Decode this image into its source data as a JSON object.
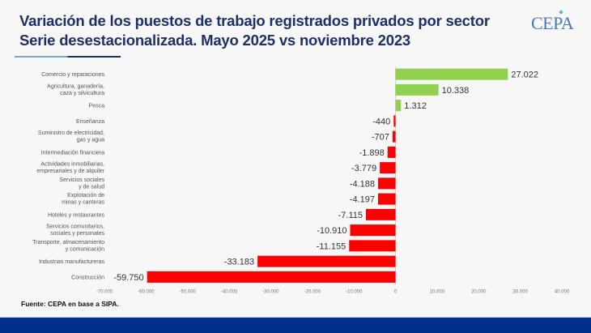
{
  "header": {
    "title_line1": "Variación de los puestos de trabajo registrados privados por sector",
    "title_line2": "Serie desestacionalizada. Mayo 2025 vs noviembre 2023",
    "logo_text": "CEPA"
  },
  "footer": {
    "source": "Fuente: CEPA en base a SIPA."
  },
  "colors": {
    "positive": "#92d050",
    "negative": "#ff0000",
    "title": "#1d2f6b",
    "bottom_bar": "#00308a"
  },
  "chart_data": {
    "type": "bar",
    "orientation": "horizontal",
    "title": "Variación de los puestos de trabajo registrados privados por sector",
    "subtitle": "Serie desestacionalizada. Mayo 2025 vs noviembre 2023",
    "xlabel": "",
    "ylabel": "",
    "xlim": [
      -70000,
      40000
    ],
    "grid": false,
    "x_ticks": [
      -70000,
      -60000,
      -50000,
      -40000,
      -30000,
      -20000,
      -10000,
      0,
      10000,
      20000,
      30000,
      40000
    ],
    "x_tick_labels": [
      "-70.000",
      "-60.000",
      "-50.000",
      "-40.000",
      "-30.000",
      "-20.000",
      "-10.000",
      "0",
      "10.000",
      "20.000",
      "30.000",
      "40.000"
    ],
    "categories": [
      [
        "Comercio y reparaciones"
      ],
      [
        "Agricultura, ganadería,",
        "caza y silvicultura"
      ],
      [
        "Pesca"
      ],
      [
        "Enseñanza"
      ],
      [
        "Suministro de electricidad,",
        "gas y agua"
      ],
      [
        "Intermediación financiera"
      ],
      [
        "Actividades inmobiliarias,",
        "empresariales y de alquiler"
      ],
      [
        "Servicios sociales",
        "y de salud"
      ],
      [
        "Explotación de",
        "minas y canteras"
      ],
      [
        "Hoteles y restaurantes"
      ],
      [
        "Servicios comunitarios,",
        "sociales y personales"
      ],
      [
        "Transporte, almacenamiento",
        "y comunicación"
      ],
      [
        "Industrias manufactureras"
      ],
      [
        "Construcción"
      ]
    ],
    "values": [
      27022,
      10338,
      1312,
      -440,
      -707,
      -1898,
      -3779,
      -4188,
      -4197,
      -7115,
      -10910,
      -11155,
      -33183,
      -59750
    ],
    "value_labels": [
      "27.022",
      "10.338",
      "1.312",
      "-440",
      "-707",
      "-1.898",
      "-3.779",
      "-4.188",
      "-4.197",
      "-7.115",
      "-10.910",
      "-11.155",
      "-33.183",
      "-59.750"
    ]
  }
}
